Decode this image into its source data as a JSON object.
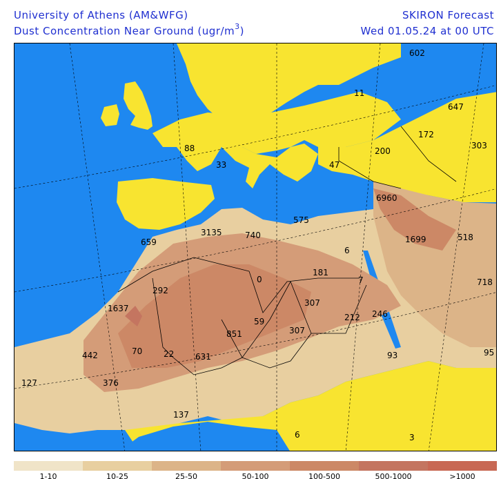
{
  "header": {
    "org_title": "University of Athens (AM&WFG)",
    "product_title_main": "Dust Concentration Near Ground (ugr/m",
    "product_title_sup": "3",
    "product_title_end": ")",
    "forecast_title": "SKIRON Forecast",
    "forecast_date": "Wed 01.05.24 at 00 UTC"
  },
  "colors": {
    "sea": "#1e88f0",
    "clean_land": "#f8e430",
    "level_1": "#f0e4c8",
    "level_2": "#e8cfa0",
    "level_3": "#dcb488",
    "level_4": "#d49c78",
    "level_5": "#cc8866",
    "level_6": "#c47560",
    "level_7": "#c86854",
    "border": "#000000"
  },
  "map_labels": [
    {
      "text": "602"
    },
    {
      "text": "11"
    },
    {
      "text": "647"
    },
    {
      "text": "172"
    },
    {
      "text": "303"
    },
    {
      "text": "88"
    },
    {
      "text": "200"
    },
    {
      "text": "33"
    },
    {
      "text": "47"
    },
    {
      "text": "6960"
    },
    {
      "text": "575"
    },
    {
      "text": "3135"
    },
    {
      "text": "740"
    },
    {
      "text": "1699"
    },
    {
      "text": "518"
    },
    {
      "text": "659"
    },
    {
      "text": "6"
    },
    {
      "text": "181"
    },
    {
      "text": "0"
    },
    {
      "text": "7"
    },
    {
      "text": "718"
    },
    {
      "text": "292"
    },
    {
      "text": "307"
    },
    {
      "text": "1637"
    },
    {
      "text": "212"
    },
    {
      "text": "246"
    },
    {
      "text": "59"
    },
    {
      "text": "851"
    },
    {
      "text": "307"
    },
    {
      "text": "442"
    },
    {
      "text": "70"
    },
    {
      "text": "22"
    },
    {
      "text": "631"
    },
    {
      "text": "93"
    },
    {
      "text": "95"
    },
    {
      "text": "127"
    },
    {
      "text": "376"
    },
    {
      "text": "137"
    },
    {
      "text": "6"
    },
    {
      "text": "3"
    }
  ],
  "colorbar": {
    "segments": [
      "#f0e4c8",
      "#e8cfa0",
      "#dcb488",
      "#d49c78",
      "#cc8866",
      "#c47560",
      "#c86854"
    ],
    "labels": [
      "1-10",
      "10-25",
      "25-50",
      "50-100",
      "100-500",
      "500-1000",
      ">1000"
    ]
  }
}
